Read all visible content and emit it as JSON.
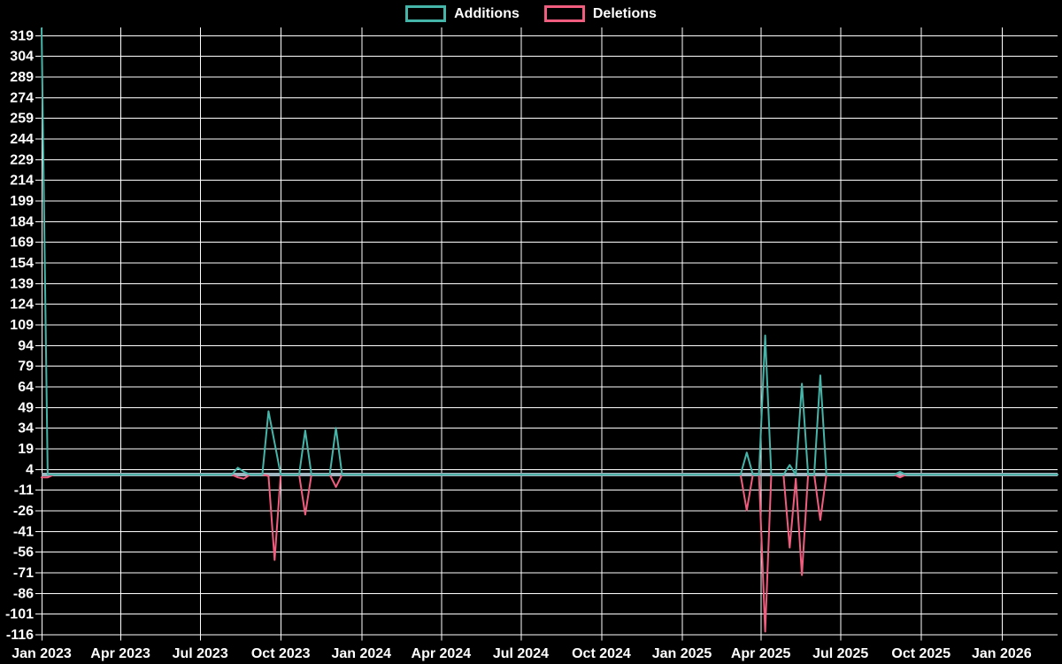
{
  "legend": {
    "items": [
      {
        "label": "Additions",
        "color": "#45b5a9"
      },
      {
        "label": "Deletions",
        "color": "#f05d7e"
      }
    ]
  },
  "colors": {
    "background": "#000000",
    "grid": "#ffffff",
    "text": "#ffffff",
    "additions": "#45b5a9",
    "deletions": "#f05d7e",
    "zero_baseline_band": "#9fb6c0"
  },
  "chart_data": {
    "type": "line",
    "title": "",
    "xlabel": "",
    "ylabel": "",
    "legend_position": "top-center",
    "grid": true,
    "x_tick_labels": [
      "Jan 2023",
      "Apr 2023",
      "Jul 2023",
      "Oct 2023",
      "Jan 2024",
      "Apr 2024",
      "Jul 2024",
      "Oct 2024",
      "Jan 2025",
      "Apr 2025",
      "Jul 2025",
      "Oct 2025",
      "Jan 2026"
    ],
    "y_tick_labels": [
      319,
      304,
      289,
      274,
      259,
      244,
      229,
      214,
      199,
      184,
      169,
      154,
      139,
      124,
      109,
      94,
      79,
      64,
      49,
      34,
      19,
      4,
      -11,
      -26,
      -41,
      -56,
      -71,
      -86,
      -101,
      -116
    ],
    "y_axis": {
      "min": -116,
      "max": 324,
      "tick_step": 15
    },
    "x_axis": {
      "start_date": "2023-01-01",
      "end_date": "2026-03-06",
      "unit": "week"
    },
    "series_names": [
      "Additions",
      "Deletions"
    ],
    "points": [
      {
        "date": "2023-01-01",
        "additions": 324,
        "deletions": -2
      },
      {
        "date": "2023-01-08",
        "additions": 0,
        "deletions": -2
      },
      {
        "date": "2023-01-15",
        "additions": 0,
        "deletions": 0
      },
      {
        "date": "2023-08-06",
        "additions": 0,
        "deletions": 0
      },
      {
        "date": "2023-08-13",
        "additions": 5,
        "deletions": -2
      },
      {
        "date": "2023-08-20",
        "additions": 2,
        "deletions": -3
      },
      {
        "date": "2023-08-27",
        "additions": 0,
        "deletions": 0
      },
      {
        "date": "2023-09-10",
        "additions": 0,
        "deletions": 0
      },
      {
        "date": "2023-09-17",
        "additions": 46,
        "deletions": -1
      },
      {
        "date": "2023-09-24",
        "additions": 23,
        "deletions": -62
      },
      {
        "date": "2023-10-01",
        "additions": 0,
        "deletions": 0
      },
      {
        "date": "2023-10-22",
        "additions": 0,
        "deletions": 0
      },
      {
        "date": "2023-10-29",
        "additions": 32,
        "deletions": -29
      },
      {
        "date": "2023-11-05",
        "additions": 0,
        "deletions": 0
      },
      {
        "date": "2023-11-26",
        "additions": 0,
        "deletions": 0
      },
      {
        "date": "2023-12-03",
        "additions": 34,
        "deletions": -9
      },
      {
        "date": "2023-12-10",
        "additions": 0,
        "deletions": 0
      },
      {
        "date": "2025-03-09",
        "additions": 0,
        "deletions": 0
      },
      {
        "date": "2025-03-16",
        "additions": 16,
        "deletions": -26
      },
      {
        "date": "2025-03-23",
        "additions": 0,
        "deletions": 0
      },
      {
        "date": "2025-03-30",
        "additions": 0,
        "deletions": 0
      },
      {
        "date": "2025-04-06",
        "additions": 101,
        "deletions": -114
      },
      {
        "date": "2025-04-13",
        "additions": 0,
        "deletions": 0
      },
      {
        "date": "2025-04-27",
        "additions": 0,
        "deletions": 0
      },
      {
        "date": "2025-05-04",
        "additions": 7,
        "deletions": -53
      },
      {
        "date": "2025-05-11",
        "additions": 0,
        "deletions": -3
      },
      {
        "date": "2025-05-18",
        "additions": 66,
        "deletions": -73
      },
      {
        "date": "2025-05-25",
        "additions": 0,
        "deletions": 0
      },
      {
        "date": "2025-06-01",
        "additions": 0,
        "deletions": 0
      },
      {
        "date": "2025-06-08",
        "additions": 72,
        "deletions": -33
      },
      {
        "date": "2025-06-15",
        "additions": 0,
        "deletions": 0
      },
      {
        "date": "2025-08-31",
        "additions": 0,
        "deletions": 0
      },
      {
        "date": "2025-09-07",
        "additions": 2,
        "deletions": -2
      },
      {
        "date": "2025-09-14",
        "additions": 0,
        "deletions": 0
      },
      {
        "date": "2026-03-06",
        "additions": 0,
        "deletions": 0
      }
    ]
  }
}
